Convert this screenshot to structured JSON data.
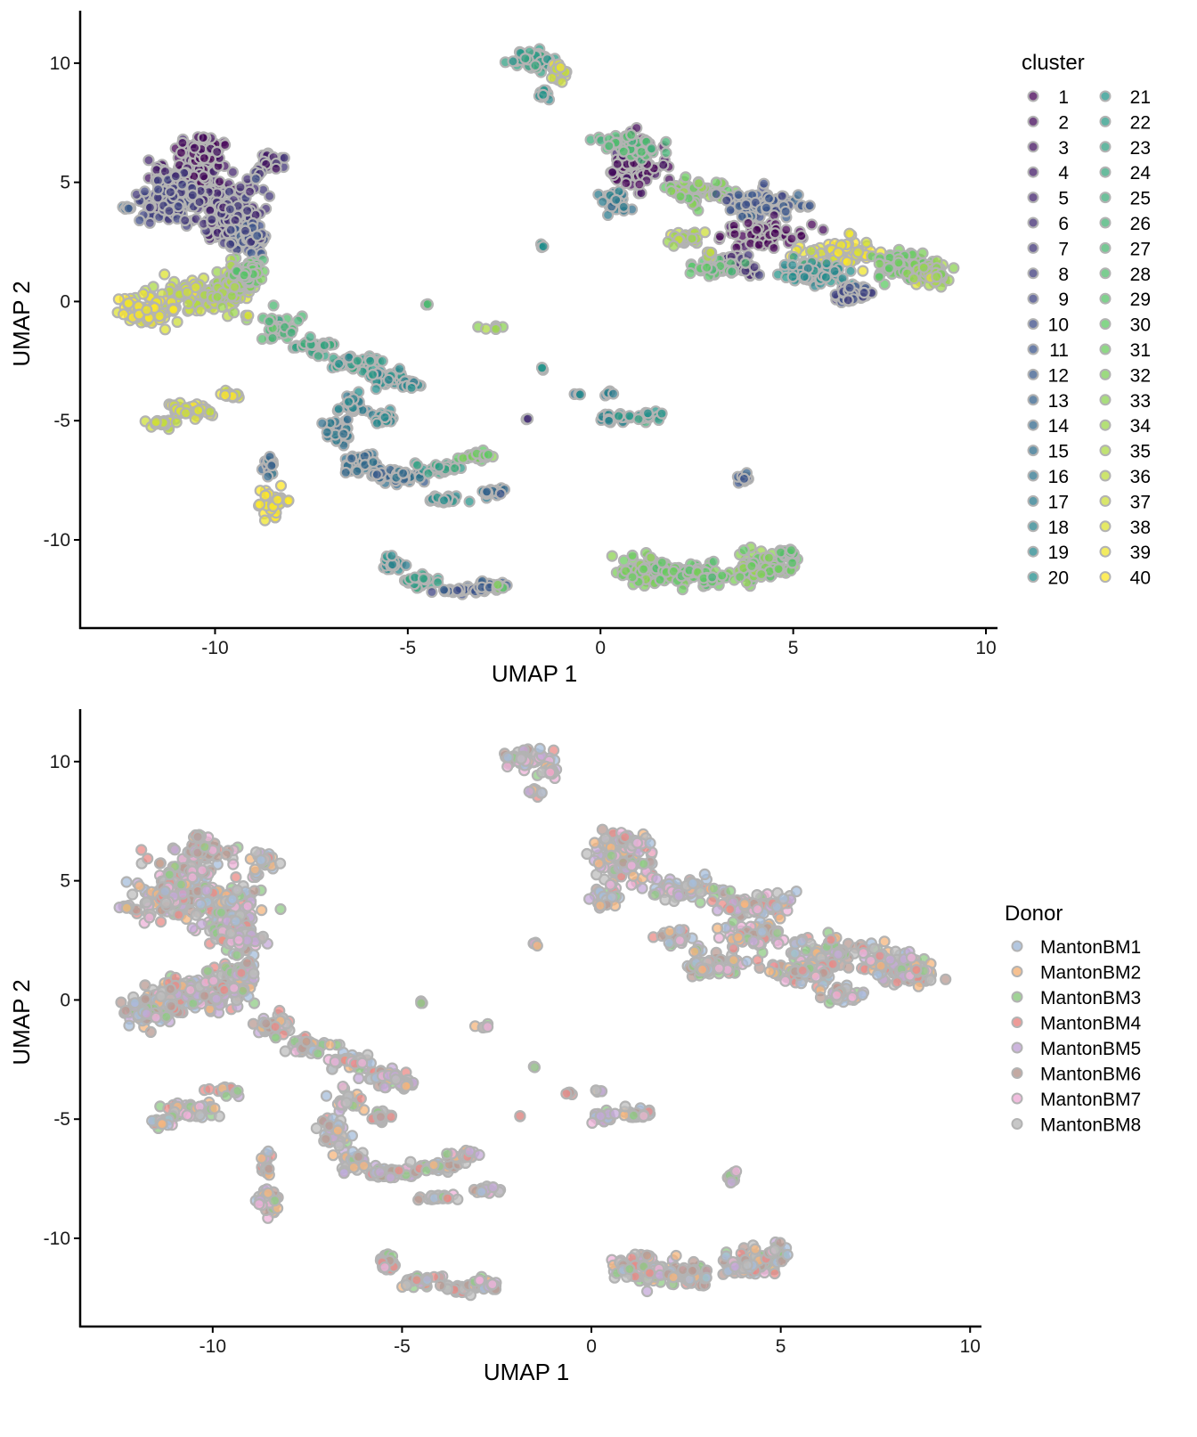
{
  "chart_data": [
    {
      "type": "scatter",
      "title": "",
      "xlabel": "UMAP 1",
      "ylabel": "UMAP 2",
      "xlim": [
        -13.5,
        10.3
      ],
      "ylim": [
        -13.7,
        12.2
      ],
      "xticks": [
        -10,
        -5,
        0,
        5,
        10
      ],
      "yticks": [
        10,
        5,
        0,
        -5,
        -10
      ],
      "grid": false,
      "point_outline_color": "#b3b3b3",
      "legend": {
        "title": "cluster",
        "placement": "right",
        "columns": 2,
        "entries": [
          "1",
          "2",
          "3",
          "4",
          "5",
          "6",
          "7",
          "8",
          "9",
          "10",
          "11",
          "12",
          "13",
          "14",
          "15",
          "16",
          "17",
          "18",
          "19",
          "20",
          "21",
          "22",
          "23",
          "24",
          "25",
          "26",
          "27",
          "28",
          "29",
          "30",
          "31",
          "32",
          "33",
          "34",
          "35",
          "36",
          "37",
          "38",
          "39",
          "40"
        ],
        "palette": "viridis"
      },
      "clusters": [
        {
          "name": "left-upper blob",
          "x_range": [
            -12.3,
            -8.6
          ],
          "y_range": [
            1.6,
            6.9
          ],
          "dominant_clusters": [
            "1",
            "2",
            "3",
            "4",
            "5",
            "6",
            "7",
            "8"
          ]
        },
        {
          "name": "left-upper satellite",
          "x_range": [
            -10.6,
            -10.0
          ],
          "y_range": [
            6.7,
            7.0
          ],
          "dominant_clusters": [
            "3"
          ]
        },
        {
          "name": "left-upper island",
          "x_range": [
            -9.0,
            -8.2
          ],
          "y_range": [
            5.2,
            6.4
          ],
          "dominant_clusters": [
            "4",
            "6"
          ]
        },
        {
          "name": "left-lower blob",
          "x_range": [
            -12.5,
            -8.8
          ],
          "y_range": [
            -1.6,
            1.8
          ],
          "dominant_clusters": [
            "33",
            "36",
            "38",
            "40"
          ]
        },
        {
          "name": "bridge trail",
          "x_range": [
            -9.0,
            -4.6
          ],
          "y_range": [
            -3.6,
            0.4
          ],
          "dominant_clusters": [
            "18",
            "20",
            "24",
            "26"
          ]
        },
        {
          "name": "hook",
          "x_range": [
            -7.2,
            -2.9
          ],
          "y_range": [
            -7.6,
            -3.5
          ],
          "dominant_clusters": [
            "12",
            "15",
            "17",
            "22"
          ]
        },
        {
          "name": "left streak",
          "x_range": [
            -11.6,
            -9.3
          ],
          "y_range": [
            -5.5,
            -3.2
          ],
          "dominant_clusters": [
            "36",
            "38",
            "39"
          ]
        },
        {
          "name": "small pillar",
          "x_range": [
            -9.0,
            -8.1
          ],
          "y_range": [
            -9.3,
            -6.0
          ],
          "dominant_clusters": [
            "13",
            "38",
            "40"
          ]
        },
        {
          "name": "top island",
          "x_range": [
            -2.8,
            -0.5
          ],
          "y_range": [
            8.3,
            11.0
          ],
          "dominant_clusters": [
            "21",
            "24",
            "37"
          ]
        },
        {
          "name": "right large blob",
          "x_range": [
            -0.6,
            9.2
          ],
          "y_range": [
            0.6,
            7.3
          ],
          "dominant_clusters": [
            "1",
            "5",
            "9",
            "20",
            "28",
            "32",
            "37",
            "39"
          ]
        },
        {
          "name": "bottom-left island",
          "x_range": [
            -5.6,
            -2.4
          ],
          "y_range": [
            -12.3,
            -10.4
          ],
          "dominant_clusters": [
            "10",
            "14",
            "18"
          ]
        },
        {
          "name": "bottom-right island",
          "x_range": [
            0.4,
            5.2
          ],
          "y_range": [
            -12.2,
            -10.1
          ],
          "dominant_clusters": [
            "28",
            "30",
            "32"
          ]
        },
        {
          "name": "mid small clusters",
          "x_range": [
            -4.8,
            -2.2
          ],
          "y_range": [
            -8.6,
            -7.7
          ],
          "dominant_clusters": [
            "16",
            "19",
            "24"
          ]
        },
        {
          "name": "center right clusters",
          "x_range": [
            -0.7,
            1.9
          ],
          "y_range": [
            -5.5,
            -3.6
          ],
          "dominant_clusters": [
            "17",
            "20"
          ]
        },
        {
          "name": "right small pair",
          "x_range": [
            3.4,
            3.9
          ],
          "y_range": [
            -8.0,
            -7.0
          ],
          "dominant_clusters": [
            "11"
          ]
        }
      ]
    },
    {
      "type": "scatter",
      "title": "",
      "xlabel": "UMAP 1",
      "ylabel": "UMAP 2",
      "xlim": [
        -13.5,
        10.3
      ],
      "ylim": [
        -13.7,
        12.2
      ],
      "xticks": [
        -10,
        -5,
        0,
        5,
        10
      ],
      "yticks": [
        10,
        5,
        0,
        -5,
        -10
      ],
      "grid": false,
      "point_outline_color": "#b3b3b3",
      "legend": {
        "title": "Donor",
        "placement": "right",
        "columns": 1,
        "entries": [
          "MantonBM1",
          "MantonBM2",
          "MantonBM3",
          "MantonBM4",
          "MantonBM5",
          "MantonBM6",
          "MantonBM7",
          "MantonBM8"
        ],
        "colors": [
          "#a6bddb",
          "#f4b67e",
          "#8fcb84",
          "#ea8a86",
          "#c4a8d8",
          "#b89a92",
          "#eeb1d8",
          "#bdbdbd"
        ]
      },
      "note_donor_mixing": "all donors intermixed across every cluster"
    }
  ]
}
